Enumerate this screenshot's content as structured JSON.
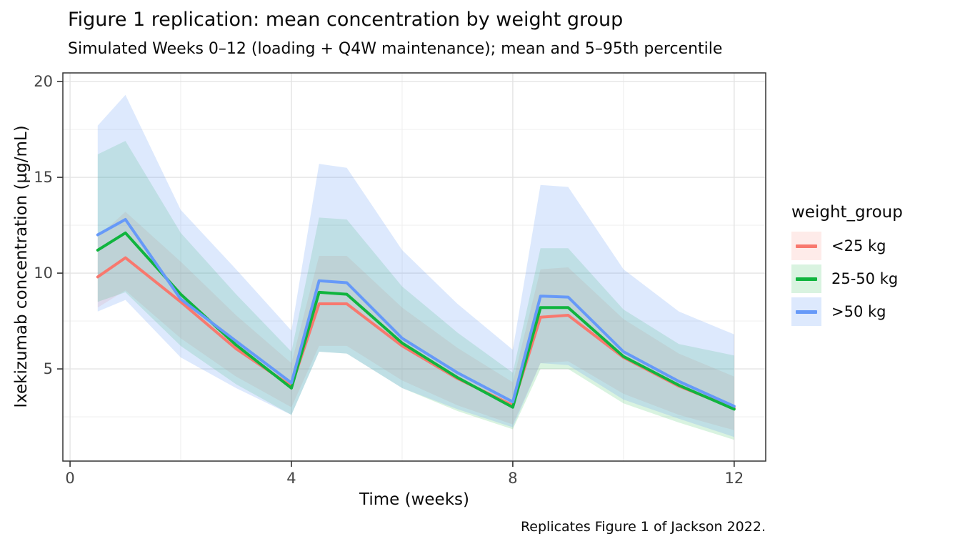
{
  "figure": {
    "title": "Figure 1 replication: mean concentration by weight group",
    "subtitle": "Simulated Weeks 0–12 (loading + Q4W maintenance); mean and 5–95th percentile",
    "caption": "Replicates Figure 1 of Jackson 2022.",
    "x_axis_label": "Time (weeks)",
    "y_axis_label": "Ixekizumab concentration (µg/mL)",
    "legend_title": "weight_group"
  },
  "chart_data": {
    "type": "line",
    "title": "Figure 1 replication: mean concentration by weight group",
    "subtitle": "Simulated Weeks 0–12 (loading + Q4W maintenance); mean and 5–95th percentile",
    "xlabel": "Time (weeks)",
    "ylabel": "Ixekizumab concentration (µg/mL)",
    "band_description": "5–95th percentile ribbon around mean",
    "legend_position": "right",
    "grid": true,
    "x": [
      0.5,
      1,
      2,
      3,
      4,
      4.5,
      5,
      6,
      7,
      8,
      8.5,
      9,
      10,
      11,
      12
    ],
    "x_ticks": [
      "0",
      "4",
      "8",
      "12"
    ],
    "x_tick_values": [
      0,
      4,
      8,
      12
    ],
    "x_minor_values": [
      2,
      6,
      10
    ],
    "y_ticks": [
      "5",
      "10",
      "15",
      "20"
    ],
    "y_tick_values": [
      5,
      10,
      15,
      20
    ],
    "y_minor_values": [
      2.5,
      7.5,
      12.5,
      17.5
    ],
    "xlim": [
      -0.13,
      12.57
    ],
    "ylim": [
      0.19,
      20.45
    ],
    "series": [
      {
        "id": "under-25kg",
        "name": "<25 kg",
        "color": "#F8786E",
        "fill_rgba": "rgba(248,120,110,0.15)",
        "mean": [
          9.8,
          10.8,
          8.5,
          6.05,
          4.1,
          8.4,
          8.4,
          6.2,
          4.5,
          3.1,
          7.7,
          7.8,
          5.6,
          4.1,
          2.95
        ],
        "p5": [
          8.2,
          9.1,
          6.6,
          4.6,
          3.0,
          6.2,
          6.2,
          4.4,
          3.1,
          2.1,
          5.3,
          5.4,
          3.7,
          2.6,
          1.8
        ],
        "p95": [
          11.9,
          13.2,
          10.6,
          7.8,
          5.3,
          10.9,
          10.9,
          8.2,
          6.1,
          4.3,
          10.2,
          10.3,
          7.6,
          5.8,
          4.6
        ]
      },
      {
        "id": "25-50kg",
        "name": "25-50 kg",
        "color": "#10B43E",
        "fill_rgba": "rgba(16,180,62,0.16)",
        "mean": [
          11.2,
          12.1,
          8.9,
          6.25,
          4.0,
          9.0,
          8.9,
          6.35,
          4.55,
          3.0,
          8.2,
          8.2,
          5.65,
          4.15,
          2.9
        ],
        "p5": [
          8.5,
          9.0,
          6.2,
          4.2,
          2.6,
          5.9,
          5.8,
          4.0,
          2.8,
          1.85,
          5.0,
          5.0,
          3.2,
          2.2,
          1.3
        ],
        "p95": [
          16.2,
          16.9,
          12.1,
          8.9,
          5.9,
          12.9,
          12.8,
          9.3,
          6.9,
          4.8,
          11.3,
          11.3,
          8.1,
          6.3,
          5.7
        ]
      },
      {
        "id": "over-50kg",
        "name": ">50 kg",
        "color": "#6699F8",
        "fill_rgba": "rgba(102,153,248,0.22)",
        "mean": [
          12.0,
          12.8,
          8.65,
          6.45,
          4.27,
          9.6,
          9.5,
          6.6,
          4.8,
          3.28,
          8.8,
          8.75,
          5.9,
          4.35,
          3.05
        ],
        "p5": [
          8.0,
          8.6,
          5.6,
          4.0,
          2.6,
          5.9,
          5.8,
          4.0,
          2.9,
          1.95,
          5.3,
          5.2,
          3.4,
          2.4,
          1.45
        ],
        "p95": [
          17.7,
          19.3,
          13.3,
          10.2,
          7.0,
          15.7,
          15.5,
          11.2,
          8.4,
          6.0,
          14.6,
          14.5,
          10.2,
          8.0,
          6.8
        ]
      }
    ],
    "style": {
      "grid_major_color": "#e3e3e3",
      "grid_minor_color": "#f0f0f0",
      "panel_border_color": "#333333",
      "tick_label_color": "#454545"
    }
  }
}
